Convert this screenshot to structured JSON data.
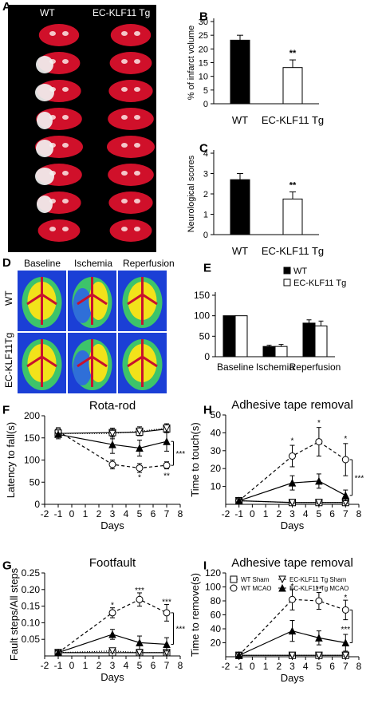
{
  "panel_A": {
    "letter": "A",
    "col_labels": [
      "WT",
      "EC-KLF11 Tg"
    ],
    "slices_per_column": 8
  },
  "panel_D": {
    "letter": "D",
    "col_labels": [
      "Baseline",
      "Ischemia",
      "Reperfusion"
    ],
    "row_labels": [
      "WT",
      "EC-KLF11Tg"
    ]
  },
  "colors": {
    "wt_bar": "#000000",
    "tg_bar": "#ffffff",
    "brain_red": "#d0102a",
    "ldf_blue": "#1b3fd6",
    "ldf_green": "#3dc46a",
    "ldf_yellow": "#f2e21a",
    "ldf_red": "#c8102e"
  },
  "chart_data": [
    {
      "id": "B",
      "letter": "B",
      "type": "bar",
      "categories": [
        "WT",
        "EC-KLF11 Tg"
      ],
      "values": [
        23.2,
        13.2
      ],
      "errors": [
        1.8,
        2.8
      ],
      "annotations": [
        "",
        "**"
      ],
      "ylabel": "% of infarct volume",
      "ylim": [
        0,
        30
      ],
      "yticks": [
        0,
        5,
        10,
        15,
        20,
        25,
        30
      ],
      "bar_fills": [
        "#000000",
        "#ffffff"
      ]
    },
    {
      "id": "C",
      "letter": "C",
      "type": "bar",
      "categories": [
        "WT",
        "EC-KLF11 Tg"
      ],
      "values": [
        2.7,
        1.75
      ],
      "errors": [
        0.3,
        0.35
      ],
      "annotations": [
        "",
        "**"
      ],
      "ylabel": "Neurological scores",
      "ylim": [
        0,
        4
      ],
      "yticks": [
        0,
        1,
        2,
        3,
        4
      ],
      "bar_fills": [
        "#000000",
        "#ffffff"
      ]
    },
    {
      "id": "E",
      "letter": "E",
      "type": "bar",
      "categories": [
        "Baseline",
        "Ischemia",
        "Reperfusion"
      ],
      "series": [
        {
          "name": "WT",
          "values": [
            100,
            25,
            82
          ],
          "errors": [
            0,
            3,
            8
          ],
          "fill": "#000000"
        },
        {
          "name": "EC-KLF11 Tg",
          "values": [
            100,
            25,
            75
          ],
          "errors": [
            0,
            5,
            12
          ],
          "fill": "#ffffff"
        }
      ],
      "ylim": [
        0,
        150
      ],
      "yticks": [
        0,
        50,
        100,
        150
      ],
      "legend": "top-right"
    },
    {
      "id": "F",
      "letter": "F",
      "type": "line",
      "title": "Rota-rod",
      "xlabel": "Days",
      "ylabel": "Latency to fall(s)",
      "xlim": [
        -2,
        8
      ],
      "xticks": [
        -2,
        -1,
        0,
        1,
        2,
        3,
        4,
        5,
        6,
        7,
        8
      ],
      "ylim": [
        0,
        200
      ],
      "yticks": [
        0,
        50,
        100,
        150,
        200
      ],
      "x": [
        -1,
        3,
        5,
        7
      ],
      "series": [
        {
          "key": "wt_sham",
          "values": [
            160,
            162,
            163,
            170
          ],
          "errors": [
            8,
            10,
            8,
            8
          ],
          "marker": "square",
          "dash": "solid",
          "fill": "#ffffff"
        },
        {
          "key": "tg_sham",
          "values": [
            160,
            160,
            165,
            172
          ],
          "errors": [
            8,
            12,
            10,
            10
          ],
          "marker": "triangle-down",
          "dash": "solid",
          "fill": "#ffffff"
        },
        {
          "key": "wt_mcao",
          "values": [
            165,
            90,
            82,
            88
          ],
          "errors": [
            8,
            10,
            10,
            8
          ],
          "marker": "circle",
          "dash": "dashed",
          "fill": "#ffffff"
        },
        {
          "key": "tg_mcao",
          "values": [
            158,
            135,
            127,
            142
          ],
          "errors": [
            10,
            20,
            18,
            22
          ],
          "marker": "triangle-up",
          "dash": "solid",
          "fill": "#000000"
        }
      ],
      "point_annotations": [
        {
          "x": 5,
          "y": 62,
          "text": "*"
        },
        {
          "x": 7,
          "y": 66,
          "text": "**"
        }
      ],
      "bracket": {
        "x": 7.5,
        "y1": 88,
        "y2": 142,
        "text": "***"
      }
    },
    {
      "id": "H",
      "letter": "H",
      "type": "line",
      "title": "Adhesive tape removal",
      "xlabel": "Days",
      "ylabel": "Time to touch(s)",
      "xlim": [
        -2,
        8
      ],
      "xticks": [
        -2,
        -1,
        0,
        1,
        2,
        3,
        4,
        5,
        6,
        7,
        8
      ],
      "ylim": [
        0,
        50
      ],
      "yticks": [
        10,
        20,
        30,
        40,
        50
      ],
      "x": [
        -1,
        3,
        5,
        7
      ],
      "series": [
        {
          "key": "wt_sham",
          "values": [
            2,
            1,
            1,
            1
          ],
          "errors": [
            0.5,
            0.5,
            0.5,
            0.5
          ],
          "marker": "square",
          "dash": "solid",
          "fill": "#ffffff"
        },
        {
          "key": "tg_sham",
          "values": [
            2,
            1,
            1,
            1
          ],
          "errors": [
            0.5,
            0.5,
            0.5,
            0.5
          ],
          "marker": "triangle-down",
          "dash": "solid",
          "fill": "#ffffff"
        },
        {
          "key": "wt_mcao",
          "values": [
            2,
            27,
            35,
            25
          ],
          "errors": [
            1,
            6,
            8,
            9
          ],
          "marker": "circle",
          "dash": "dashed",
          "fill": "#ffffff"
        },
        {
          "key": "tg_mcao",
          "values": [
            2,
            12,
            13,
            5
          ],
          "errors": [
            1,
            4,
            4,
            3
          ],
          "marker": "triangle-up",
          "dash": "solid",
          "fill": "#000000"
        }
      ],
      "point_annotations": [
        {
          "x": 3,
          "y": 36,
          "text": "*"
        },
        {
          "x": 5,
          "y": 46,
          "text": "*"
        },
        {
          "x": 7,
          "y": 37,
          "text": "*"
        }
      ],
      "bracket": {
        "x": 7.5,
        "y1": 5,
        "y2": 25,
        "text": "***"
      }
    },
    {
      "id": "G",
      "letter": "G",
      "type": "line",
      "title": "Footfault",
      "xlabel": "Days",
      "ylabel": "Fault steps/All steps",
      "xlim": [
        -2,
        8
      ],
      "xticks": [
        -2,
        -1,
        0,
        1,
        2,
        3,
        4,
        5,
        6,
        7,
        8
      ],
      "ylim": [
        0,
        0.25
      ],
      "yticks": [
        0.05,
        0.1,
        0.15,
        0.2,
        0.25
      ],
      "ytick_labels": [
        "0.05",
        "0.10",
        "0.15",
        "0.20",
        "0.25"
      ],
      "x": [
        -1,
        3,
        5,
        7
      ],
      "series": [
        {
          "key": "wt_sham",
          "values": [
            0.01,
            0.01,
            0.01,
            0.01
          ],
          "errors": [
            0.005,
            0.005,
            0.005,
            0.005
          ],
          "marker": "square",
          "dash": "solid",
          "fill": "#ffffff"
        },
        {
          "key": "tg_sham",
          "values": [
            0.01,
            0.015,
            0.01,
            0.01
          ],
          "errors": [
            0.005,
            0.005,
            0.005,
            0.005
          ],
          "marker": "triangle-down",
          "dash": "solid",
          "fill": "#ffffff"
        },
        {
          "key": "wt_mcao",
          "values": [
            0.01,
            0.13,
            0.17,
            0.13
          ],
          "errors": [
            0.005,
            0.015,
            0.02,
            0.025
          ],
          "marker": "circle",
          "dash": "dashed",
          "fill": "#ffffff"
        },
        {
          "key": "tg_mcao",
          "values": [
            0.01,
            0.065,
            0.04,
            0.035
          ],
          "errors": [
            0.005,
            0.015,
            0.02,
            0.02
          ],
          "marker": "triangle-up",
          "dash": "solid",
          "fill": "#000000"
        }
      ],
      "point_annotations": [
        {
          "x": 3,
          "y": 0.155,
          "text": "*"
        },
        {
          "x": 5,
          "y": 0.2,
          "text": "***"
        },
        {
          "x": 7,
          "y": 0.165,
          "text": "***"
        }
      ],
      "bracket": {
        "x": 7.5,
        "y1": 0.035,
        "y2": 0.13,
        "text": "***"
      }
    },
    {
      "id": "I",
      "letter": "I",
      "type": "line",
      "title": "Adhesive tape removal",
      "xlabel": "Days",
      "ylabel": "Time to remove(s)",
      "xlim": [
        -2,
        8
      ],
      "xticks": [
        -2,
        -1,
        0,
        1,
        2,
        3,
        4,
        5,
        6,
        7,
        8
      ],
      "ylim": [
        0,
        120
      ],
      "yticks": [
        20,
        40,
        60,
        80,
        100,
        120
      ],
      "x": [
        -1,
        3,
        5,
        7
      ],
      "series": [
        {
          "key": "wt_sham",
          "values": [
            2,
            2,
            2,
            2
          ],
          "errors": [
            1,
            1,
            1,
            1
          ],
          "marker": "square",
          "dash": "solid",
          "fill": "#ffffff"
        },
        {
          "key": "tg_sham",
          "values": [
            2,
            2,
            2,
            2
          ],
          "errors": [
            1,
            1,
            1,
            1
          ],
          "marker": "triangle-down",
          "dash": "solid",
          "fill": "#ffffff"
        },
        {
          "key": "wt_mcao",
          "values": [
            2,
            82,
            80,
            67
          ],
          "errors": [
            1,
            15,
            12,
            14
          ],
          "marker": "circle",
          "dash": "dashed",
          "fill": "#ffffff"
        },
        {
          "key": "tg_mcao",
          "values": [
            2,
            37,
            27,
            20
          ],
          "errors": [
            1,
            15,
            10,
            12
          ],
          "marker": "triangle-up",
          "dash": "solid",
          "fill": "#000000"
        }
      ],
      "point_annotations": [
        {
          "x": 3,
          "y": 102,
          "text": "*"
        },
        {
          "x": 5,
          "y": 98,
          "text": "**"
        },
        {
          "x": 7,
          "y": 86,
          "text": "*"
        },
        {
          "x": 7,
          "y": 40,
          "text": "***"
        }
      ],
      "bracket": {
        "x": 7.5,
        "y1": 20,
        "y2": 67,
        "text": ""
      },
      "legend": {
        "entries": [
          {
            "key": "wt_sham",
            "label": "WT Sham"
          },
          {
            "key": "tg_sham",
            "label": "EC-KLF11 Tg Sham"
          },
          {
            "key": "wt_mcao",
            "label": "WT MCAO"
          },
          {
            "key": "tg_mcao",
            "label": "EC-KLF11 Tg MCAO"
          }
        ]
      }
    }
  ]
}
